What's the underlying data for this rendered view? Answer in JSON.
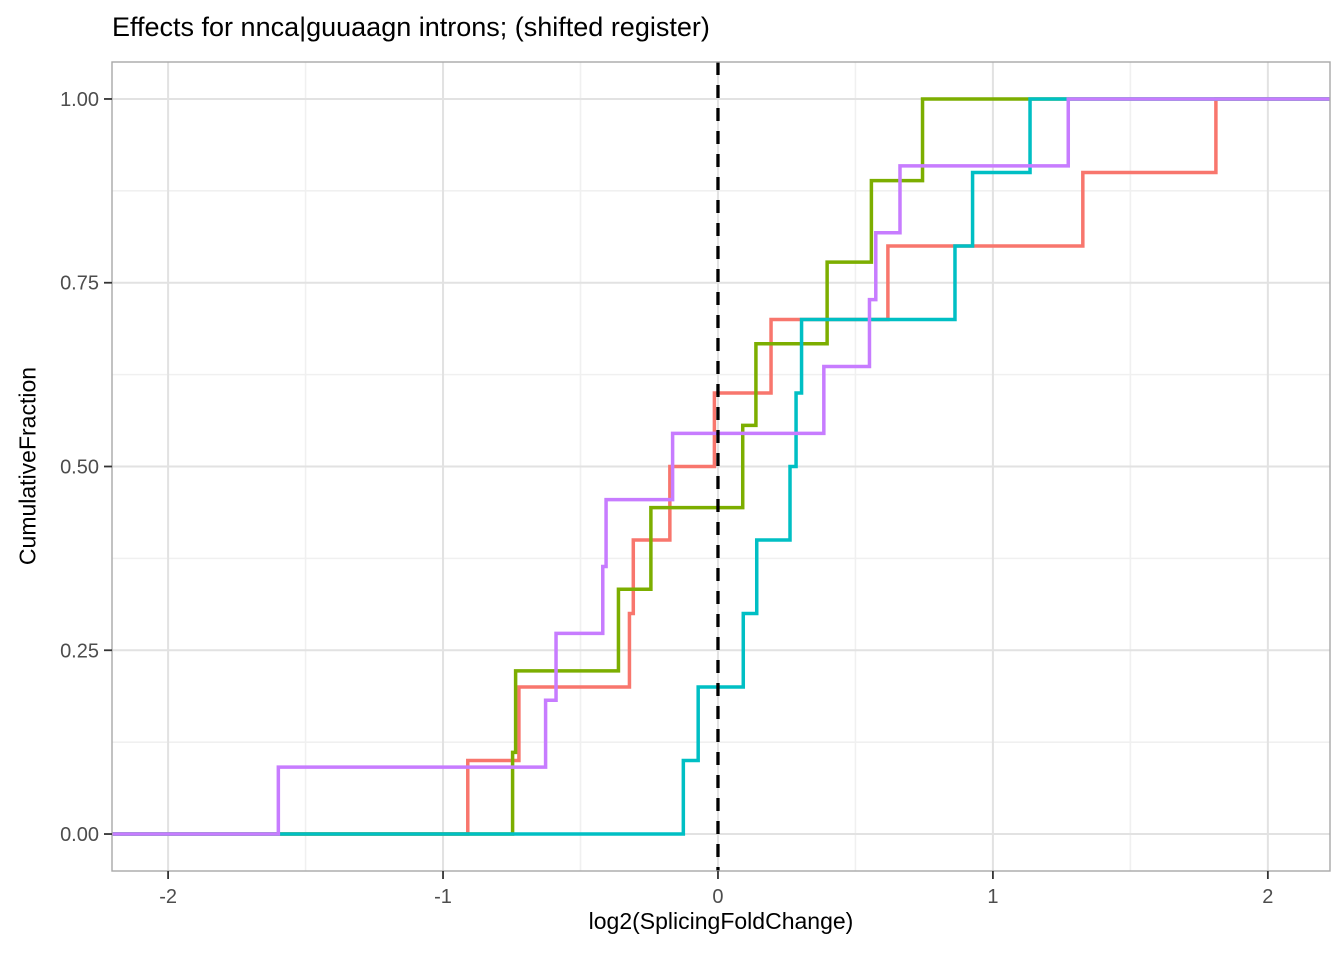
{
  "chart_data": {
    "type": "line",
    "variant": "step-ecdf",
    "title": "Effects for nnca|guuaagn introns; (shifted register)",
    "xlabel": "log2(SplicingFoldChange)",
    "ylabel": "CumulativeFraction",
    "xlim": [
      -2.204,
      2.226
    ],
    "ylim": [
      -0.0503,
      1.0503
    ],
    "x_ticks": {
      "values": [
        -2,
        -1,
        0,
        1,
        2
      ],
      "labels": [
        "-2",
        "-1",
        "0",
        "1",
        "2"
      ]
    },
    "y_ticks": {
      "values": [
        0,
        0.25,
        0.5,
        0.75,
        1
      ],
      "labels": [
        "0.00",
        "0.25",
        "0.50",
        "0.75",
        "1.00"
      ]
    },
    "x_minor": [
      -1.5,
      -0.5,
      0.5,
      1.5
    ],
    "y_minor": [
      0.125,
      0.375,
      0.625,
      0.875
    ],
    "grid": "major+minor",
    "legend_position": "none",
    "reference_line": {
      "x": 0,
      "style": "dashed",
      "color": "#000000"
    },
    "series": [
      {
        "name": "salmon",
        "color": "#F8766D",
        "steps": [
          [
            -0.91,
            0.1
          ],
          [
            -0.724,
            0.2
          ],
          [
            -0.322,
            0.3
          ],
          [
            -0.308,
            0.4
          ],
          [
            -0.175,
            0.5
          ],
          [
            -0.013,
            0.6
          ],
          [
            0.193,
            0.7
          ],
          [
            0.618,
            0.8
          ],
          [
            1.327,
            0.9
          ],
          [
            1.811,
            1.0
          ]
        ]
      },
      {
        "name": "olive-green",
        "color": "#7CAE00",
        "steps": [
          [
            -0.747,
            0.111
          ],
          [
            -0.736,
            0.222
          ],
          [
            -0.362,
            0.333
          ],
          [
            -0.244,
            0.444
          ],
          [
            0.09,
            0.556
          ],
          [
            0.138,
            0.667
          ],
          [
            0.397,
            0.778
          ],
          [
            0.558,
            0.889
          ],
          [
            0.744,
            1.0
          ]
        ]
      },
      {
        "name": "teal",
        "color": "#00BFC4",
        "steps": [
          [
            -0.126,
            0.1
          ],
          [
            -0.072,
            0.2
          ],
          [
            0.092,
            0.3
          ],
          [
            0.141,
            0.4
          ],
          [
            0.262,
            0.5
          ],
          [
            0.284,
            0.6
          ],
          [
            0.304,
            0.7
          ],
          [
            0.862,
            0.8
          ],
          [
            0.926,
            0.9
          ],
          [
            1.135,
            1.0
          ]
        ]
      },
      {
        "name": "purple",
        "color": "#C77CFF",
        "steps": [
          [
            -1.599,
            0.091
          ],
          [
            -0.627,
            0.182
          ],
          [
            -0.589,
            0.273
          ],
          [
            -0.419,
            0.364
          ],
          [
            -0.407,
            0.455
          ],
          [
            -0.165,
            0.545
          ],
          [
            0.385,
            0.636
          ],
          [
            0.551,
            0.727
          ],
          [
            0.574,
            0.818
          ],
          [
            0.662,
            0.909
          ],
          [
            1.274,
            1.0
          ]
        ]
      }
    ],
    "style": {
      "grid_major_color": "#E2E2E2",
      "grid_minor_color": "#F0F0F0",
      "panel_border_color": "#A8A8A8",
      "tick_color": "#333333",
      "tick_label_color": "#4D4D4D",
      "background": "#FFFFFF"
    }
  }
}
